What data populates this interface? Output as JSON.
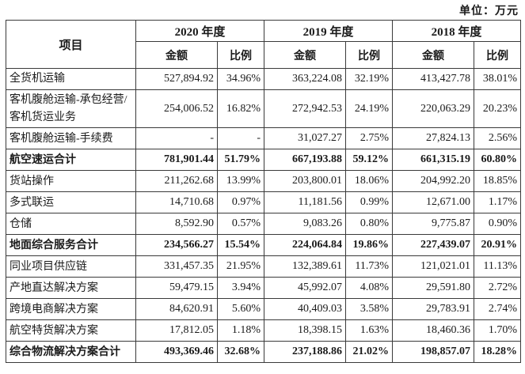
{
  "page": {
    "unit_label": "单位：万元"
  },
  "table": {
    "item_header": "项目",
    "amount_header": "金额",
    "ratio_header": "比例",
    "year_groups": [
      "2020 年度",
      "2019 年度",
      "2018 年度"
    ],
    "rows": [
      {
        "label": "全货机运输",
        "values": [
          "527,894.92",
          "34.96%",
          "363,224.08",
          "32.19%",
          "413,427.78",
          "38.01%"
        ]
      },
      {
        "label": "客机腹舱运输-承包经营/客机货运业务",
        "values": [
          "254,006.52",
          "16.82%",
          "272,942.53",
          "24.19%",
          "220,063.29",
          "20.23%"
        ]
      },
      {
        "label": "客机腹舱运输-手续费",
        "values": [
          "-",
          "-",
          "31,027.27",
          "2.75%",
          "27,824.13",
          "2.56%"
        ]
      },
      {
        "label": "航空速运合计",
        "values": [
          "781,901.44",
          "51.79%",
          "667,193.88",
          "59.12%",
          "661,315.19",
          "60.80%"
        ]
      },
      {
        "label": "货站操作",
        "values": [
          "211,262.68",
          "13.99%",
          "203,800.01",
          "18.06%",
          "204,992.20",
          "18.85%"
        ]
      },
      {
        "label": "多式联运",
        "values": [
          "14,710.68",
          "0.97%",
          "11,181.56",
          "0.99%",
          "12,671.00",
          "1.17%"
        ]
      },
      {
        "label": "仓储",
        "values": [
          "8,592.90",
          "0.57%",
          "9,083.26",
          "0.80%",
          "9,775.87",
          "0.90%"
        ]
      },
      {
        "label": "地面综合服务合计",
        "values": [
          "234,566.27",
          "15.54%",
          "224,064.84",
          "19.86%",
          "227,439.07",
          "20.91%"
        ]
      },
      {
        "label": "同业项目供应链",
        "values": [
          "331,457.35",
          "21.95%",
          "132,389.61",
          "11.73%",
          "121,021.01",
          "11.13%"
        ]
      },
      {
        "label": "产地直达解决方案",
        "values": [
          "59,479.15",
          "3.94%",
          "45,992.07",
          "4.08%",
          "29,591.80",
          "2.72%"
        ]
      },
      {
        "label": "跨境电商解决方案",
        "values": [
          "84,620.91",
          "5.60%",
          "40,409.03",
          "3.58%",
          "29,783.91",
          "2.74%"
        ]
      },
      {
        "label": "航空特货解决方案",
        "values": [
          "17,812.05",
          "1.18%",
          "18,398.15",
          "1.63%",
          "18,460.36",
          "1.70%"
        ]
      },
      {
        "label": "综合物流解决方案合计",
        "values": [
          "493,369.46",
          "32.68%",
          "237,188.86",
          "21.02%",
          "198,857.07",
          "18.28%"
        ]
      }
    ]
  }
}
